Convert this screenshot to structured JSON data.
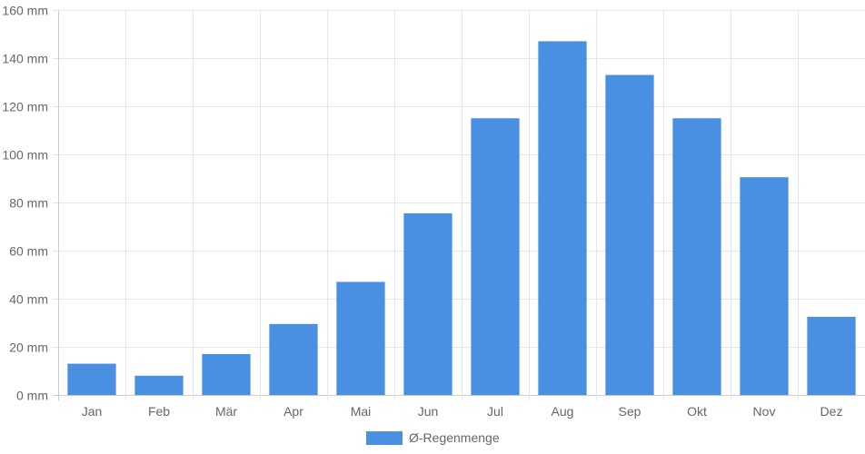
{
  "chart_data": {
    "type": "bar",
    "categories": [
      "Jan",
      "Feb",
      "Mär",
      "Apr",
      "Mai",
      "Jun",
      "Jul",
      "Aug",
      "Sep",
      "Okt",
      "Nov",
      "Dez"
    ],
    "series": [
      {
        "name": "Ø-Regenmenge",
        "values": [
          13,
          8,
          17,
          29.5,
          47,
          75.5,
          115,
          147,
          133,
          115,
          90.5,
          32.5
        ]
      }
    ],
    "yticks": [
      "0 mm",
      "20 mm",
      "40 mm",
      "60 mm",
      "80 mm",
      "100 mm",
      "120 mm",
      "140 mm",
      "160 mm"
    ],
    "ylim": [
      0,
      160
    ],
    "y_unit": "mm",
    "grid": true,
    "legend_position": "bottom",
    "bar_color": "#4a90e2"
  }
}
